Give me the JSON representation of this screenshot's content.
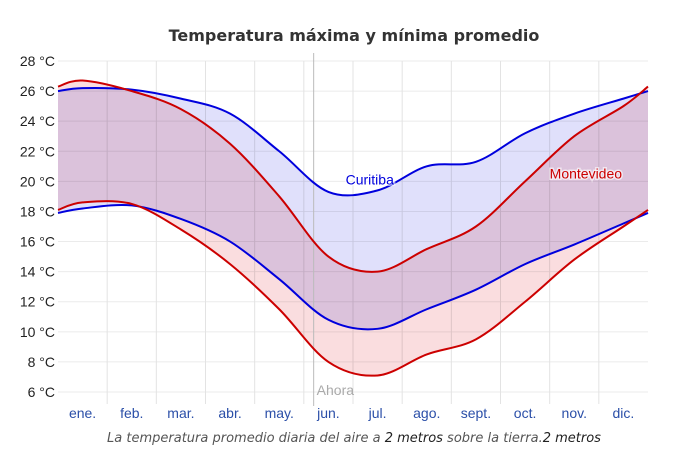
{
  "chart_data": {
    "type": "area",
    "title": "Temperatura máxima y mínima promedio",
    "xlabel": "",
    "ylabel": "",
    "ylim": [
      6,
      28
    ],
    "yticks": [
      28,
      26,
      24,
      22,
      20,
      18,
      16,
      14,
      12,
      10,
      8,
      6
    ],
    "ytick_suffix": " °C",
    "grid": true,
    "categories": [
      "ene.",
      "feb.",
      "mar.",
      "abr.",
      "may.",
      "jun.",
      "jul.",
      "ago.",
      "sept.",
      "oct.",
      "nov.",
      "dic."
    ],
    "x": [
      0,
      0.5,
      1.5,
      2.5,
      3.5,
      4.5,
      5.5,
      6.5,
      7.5,
      8.5,
      9.5,
      10.5,
      11.5,
      12
    ],
    "series": [
      {
        "name": "Curitiba",
        "color": "#0000dd",
        "fill": "#d6d6fa",
        "max": [
          26.0,
          26.2,
          26.1,
          25.5,
          24.5,
          22.0,
          19.3,
          19.4,
          21.0,
          21.3,
          23.2,
          24.5,
          25.5,
          26.0
        ],
        "min": [
          17.9,
          18.2,
          18.4,
          17.5,
          16.0,
          13.5,
          10.8,
          10.2,
          11.5,
          12.8,
          14.5,
          15.8,
          17.2,
          17.9
        ]
      },
      {
        "name": "Montevideo",
        "color": "#cc0000",
        "fill": "#f9d9dc",
        "max": [
          26.3,
          26.7,
          26.0,
          24.8,
          22.5,
          19.0,
          15.0,
          14.0,
          15.5,
          17.0,
          20.0,
          23.0,
          25.0,
          26.3
        ],
        "min": [
          18.1,
          18.6,
          18.5,
          16.8,
          14.5,
          11.5,
          8.0,
          7.1,
          8.5,
          9.5,
          12.0,
          14.8,
          17.0,
          18.1
        ]
      }
    ],
    "annotations": [
      {
        "text": "Curitiba",
        "series": "Curitiba",
        "x": 5.85,
        "y": 19.8
      },
      {
        "text": "Montevideo",
        "series": "Montevideo",
        "x": 10.0,
        "y": 20.2
      }
    ],
    "now_marker": {
      "label": "Ahora",
      "x": 5.2
    },
    "caption": {
      "parts": [
        {
          "text": "La temperatura promedio diaria del aire a ",
          "emphasis": false
        },
        {
          "text": "2 metros",
          "emphasis": true
        },
        {
          "text": " sobre la tierra.",
          "emphasis": false
        },
        {
          "text": "2 metros",
          "emphasis": true
        }
      ]
    }
  }
}
